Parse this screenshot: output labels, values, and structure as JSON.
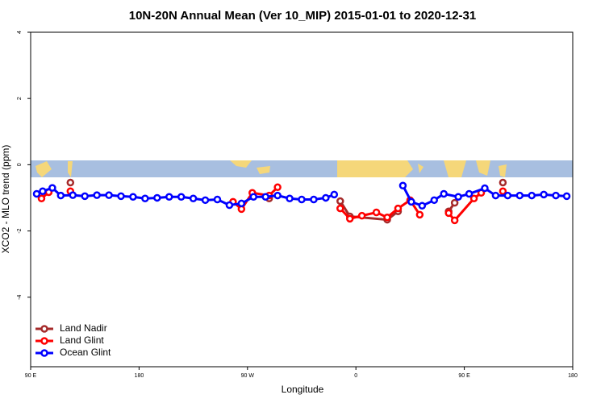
{
  "chart_data": {
    "type": "line",
    "title": "10N-20N Annual Mean (Ver 10_MIP)   2015-01-01 to 2020-12-31",
    "x_label": "Longitude",
    "y_label": "XCO2 - MLO trend (ppm)",
    "xlim": [
      90,
      540
    ],
    "xticks": [
      {
        "value": 90,
        "label": "90 E"
      },
      180,
      {
        "value": 270,
        "label": "90 W"
      },
      {
        "value": 360,
        "label": "0"
      },
      {
        "value": 450,
        "label": "90 E"
      },
      {
        "value": 540,
        "label": "180"
      }
    ],
    "ylim": [
      -6.1,
      4
    ],
    "yticks": [
      -4,
      -2,
      0,
      2,
      4
    ],
    "grid": false,
    "legend": "bottom-left",
    "series": [
      {
        "name": "Land Nadir",
        "color": "#a52a2a",
        "x": [
          123,
          200,
          288,
          320,
          347,
          355,
          386,
          395,
          415,
          437,
          442,
          460,
          482
        ],
        "values": [
          -0.54,
          null,
          -1.02,
          null,
          -1.1,
          -1.56,
          -1.66,
          -1.41,
          null,
          -1.41,
          -1.15,
          null,
          -0.54
        ]
      },
      {
        "name": "Land Glint",
        "color": "#ff0000",
        "x": [
          99,
          105,
          114,
          123,
          190,
          258,
          265,
          274,
          288,
          295,
          320,
          347,
          355,
          365,
          377,
          386,
          395,
          405,
          413,
          425,
          437,
          442,
          458,
          464,
          473,
          482
        ],
        "values": [
          -1.02,
          -0.83,
          null,
          -0.8,
          null,
          -1.12,
          -1.34,
          -0.85,
          -0.93,
          -0.68,
          null,
          -1.32,
          -1.63,
          -1.54,
          -1.44,
          -1.59,
          -1.32,
          -1.07,
          -1.51,
          null,
          -1.46,
          -1.68,
          -1.02,
          -0.85,
          null,
          -0.8
        ]
      },
      {
        "name": "Ocean Glint",
        "color": "#0000ff",
        "x": [
          95,
          100,
          108,
          115,
          125,
          135,
          145,
          155,
          165,
          175,
          185,
          195,
          205,
          215,
          225,
          235,
          245,
          255,
          265,
          275,
          285,
          295,
          305,
          315,
          325,
          335,
          342,
          370,
          399,
          406,
          415,
          425,
          433,
          445,
          454,
          467,
          476,
          486,
          496,
          506,
          516,
          526,
          535
        ],
        "values": [
          -0.88,
          -0.8,
          -0.7,
          -0.93,
          -0.92,
          -0.95,
          -0.92,
          -0.92,
          -0.95,
          -0.97,
          -1.02,
          -1.0,
          -0.97,
          -0.97,
          -1.02,
          -1.07,
          -1.05,
          -1.22,
          -1.17,
          -0.97,
          -0.97,
          -0.93,
          -1.02,
          -1.05,
          -1.05,
          -1.0,
          -0.9,
          null,
          -0.63,
          -1.12,
          -1.24,
          -1.07,
          -0.88,
          -0.97,
          -0.88,
          -0.71,
          -0.93,
          -0.93,
          -0.93,
          -0.93,
          -0.9,
          -0.93,
          -0.95
        ]
      }
    ]
  }
}
